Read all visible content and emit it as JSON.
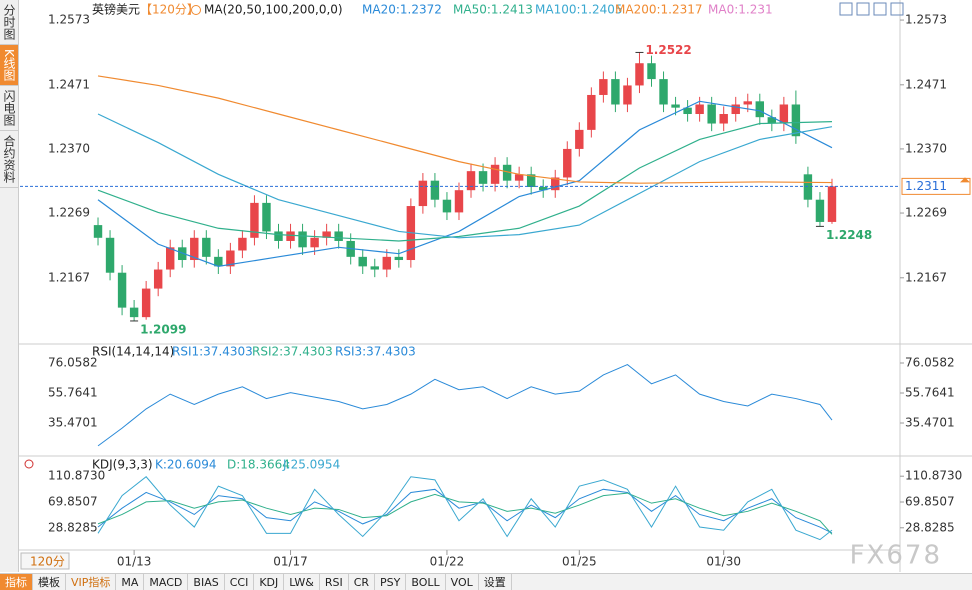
{
  "side_tabs": [
    "分时图",
    "K线图",
    "闪电图",
    "合约资料"
  ],
  "toolbar": {
    "period": "120分",
    "tabs": [
      "指标",
      "模板",
      "VIP指标",
      "MA",
      "MACD",
      "BIAS",
      "CCI",
      "KDJ",
      "LW&",
      "RSI",
      "CR",
      "PSY",
      "BOLL",
      "VOL",
      "设置"
    ]
  },
  "watermark": "FX678",
  "chart_data": {
    "type": "candlestick",
    "symbol": "英镑美元",
    "period": "【120分】",
    "indicator": "MA(20,50,100,200,0,0)",
    "up_color": "#e8464a",
    "down_color": "#2ea86c",
    "open": [
      1.225,
      1.223,
      1.2175,
      1.212,
      1.2105,
      1.215,
      1.218,
      1.2215,
      1.2195,
      1.223,
      1.22,
      1.2185,
      1.221,
      1.223,
      1.2285,
      1.224,
      1.2225,
      1.224,
      1.2215,
      1.223,
      1.224,
      1.2225,
      1.22,
      1.2185,
      1.218,
      1.22,
      1.2195,
      1.228,
      1.232,
      1.229,
      1.227,
      1.2305,
      1.2335,
      1.2315,
      1.2345,
      1.232,
      1.233,
      1.231,
      1.2305,
      1.2325,
      1.237,
      1.24,
      1.2455,
      1.248,
      1.244,
      1.247,
      1.2505,
      1.248,
      1.244,
      1.2435,
      1.2425,
      1.244,
      1.241,
      1.2425,
      1.244,
      1.2445,
      1.242,
      1.241,
      1.244,
      1.233,
      1.229,
      1.2255
    ],
    "high": [
      1.2262,
      1.2242,
      1.2187,
      1.2132,
      1.2162,
      1.2192,
      1.2227,
      1.2227,
      1.2242,
      1.2242,
      1.2212,
      1.2222,
      1.2242,
      1.2297,
      1.2297,
      1.2252,
      1.2252,
      1.2252,
      1.2242,
      1.2252,
      1.2252,
      1.2237,
      1.2212,
      1.2197,
      1.2212,
      1.2212,
      1.2292,
      1.2332,
      1.2332,
      1.2302,
      1.2317,
      1.2347,
      1.2347,
      1.2357,
      1.2357,
      1.2342,
      1.2342,
      1.2322,
      1.2337,
      1.2382,
      1.2412,
      1.2467,
      1.2492,
      1.2492,
      1.2482,
      1.2522,
      1.2517,
      1.2492,
      1.2452,
      1.2447,
      1.2452,
      1.2452,
      1.2437,
      1.2452,
      1.2457,
      1.2457,
      1.2432,
      1.2452,
      1.2462,
      1.2342,
      1.2302,
      1.2323
    ],
    "low": [
      1.2218,
      1.2163,
      1.2108,
      1.2099,
      1.2101,
      1.2138,
      1.2168,
      1.2183,
      1.2183,
      1.2188,
      1.2173,
      1.2173,
      1.2198,
      1.2218,
      1.2228,
      1.2213,
      1.2213,
      1.2203,
      1.2203,
      1.2218,
      1.2213,
      1.2188,
      1.2173,
      1.2168,
      1.2168,
      1.2183,
      1.2183,
      1.2268,
      1.2278,
      1.2258,
      1.2258,
      1.2293,
      1.2303,
      1.2303,
      1.2308,
      1.2308,
      1.2298,
      1.2293,
      1.2293,
      1.2313,
      1.2358,
      1.2388,
      1.2443,
      1.2428,
      1.2428,
      1.2458,
      1.2468,
      1.2428,
      1.2423,
      1.2413,
      1.2413,
      1.2398,
      1.2398,
      1.2413,
      1.2428,
      1.2408,
      1.2398,
      1.2398,
      1.2378,
      1.2278,
      1.2248,
      1.2252
    ],
    "close": [
      1.223,
      1.2175,
      1.212,
      1.2105,
      1.215,
      1.218,
      1.2215,
      1.2195,
      1.223,
      1.22,
      1.2185,
      1.221,
      1.223,
      1.2285,
      1.224,
      1.2225,
      1.224,
      1.2215,
      1.223,
      1.224,
      1.2225,
      1.22,
      1.2185,
      1.218,
      1.22,
      1.2195,
      1.228,
      1.232,
      1.229,
      1.227,
      1.2305,
      1.2335,
      1.2315,
      1.2345,
      1.232,
      1.233,
      1.231,
      1.2305,
      1.2325,
      1.237,
      1.24,
      1.2455,
      1.248,
      1.244,
      1.247,
      1.2505,
      1.248,
      1.244,
      1.2435,
      1.2425,
      1.244,
      1.241,
      1.2425,
      1.244,
      1.2445,
      1.242,
      1.241,
      1.244,
      1.239,
      1.229,
      1.2255,
      1.2311
    ],
    "ylim": [
      1.2069,
      1.2592
    ],
    "yticks": [
      1.2573,
      1.2471,
      {
        "value": 1.237,
        "label": "1.2370"
      },
      1.2269,
      1.2167
    ],
    "date_ticks": [
      {
        "value": 3,
        "label": "01/13"
      },
      {
        "value": 16,
        "label": "01/17"
      },
      {
        "value": 29,
        "label": "01/22"
      },
      {
        "value": 40,
        "label": "01/25"
      },
      {
        "value": 52,
        "label": "01/30"
      }
    ],
    "current": {
      "value": 1.2311,
      "color": "#2a6fd8"
    },
    "annotations": [
      {
        "value": 1.2522,
        "index": 45,
        "color": "#e8464a"
      },
      {
        "value": 1.2099,
        "index": 3,
        "color": "#2ea86c"
      },
      {
        "value": 1.2248,
        "index": 60,
        "color": "#2ea86c"
      }
    ],
    "ma_x": [
      0,
      5,
      10,
      15,
      20,
      25,
      30,
      35,
      40,
      45,
      50,
      55,
      61
    ],
    "ma": [
      {
        "name": "MA20:1.2372",
        "color": "#2a8ad8",
        "values": [
          1.229,
          1.222,
          1.2185,
          1.22,
          1.2215,
          1.2205,
          1.224,
          1.2295,
          1.232,
          1.24,
          1.2445,
          1.243,
          1.2372
        ]
      },
      {
        "name": "MA50:1.2413",
        "color": "#30b08c",
        "values": [
          1.2305,
          1.227,
          1.2245,
          1.2235,
          1.223,
          1.2225,
          1.2232,
          1.2245,
          1.228,
          1.234,
          1.2385,
          1.241,
          1.2413
        ]
      },
      {
        "name": "MA100:1.2405",
        "color": "#3aa8d0",
        "values": [
          1.2425,
          1.238,
          1.233,
          1.229,
          1.2265,
          1.224,
          1.223,
          1.2235,
          1.225,
          1.23,
          1.235,
          1.2385,
          1.2405
        ]
      },
      {
        "name": "MA200:1.2317",
        "color": "#f08a30",
        "values": [
          1.2485,
          1.247,
          1.245,
          1.2425,
          1.24,
          1.2375,
          1.235,
          1.233,
          1.2318,
          1.2316,
          1.2317,
          1.2318,
          1.2317
        ]
      },
      {
        "name": "MA0:1.231",
        "color": "#e080c8",
        "values": []
      }
    ],
    "rsi": {
      "title": "RSI(14,14,14)",
      "legend": [
        {
          "name": "RSI1:37.4303",
          "color": "#2a8ad8"
        },
        {
          "name": "RSI2:37.4303",
          "color": "#30b08c"
        },
        {
          "name": "RSI3:37.4303",
          "color": "#2a8ad8"
        }
      ],
      "x": [
        0,
        2,
        4,
        6,
        8,
        10,
        12,
        14,
        16,
        18,
        20,
        22,
        24,
        26,
        28,
        30,
        32,
        34,
        36,
        38,
        40,
        42,
        44,
        46,
        48,
        50,
        52,
        54,
        56,
        58,
        60,
        61
      ],
      "values": [
        20,
        32,
        45,
        55,
        48,
        55,
        60,
        52,
        56,
        53,
        50,
        45,
        48,
        55,
        65,
        58,
        60,
        52,
        60,
        55,
        57,
        68,
        75,
        62,
        68,
        55,
        50,
        47,
        55,
        52,
        48,
        37.43
      ],
      "ylim": [
        13.82,
        88.24
      ],
      "yticks": [
        76.0582,
        55.7641,
        35.4701
      ],
      "color": "#2a8ad8"
    },
    "kdj": {
      "title": "KDJ(9,3,3)",
      "x": [
        0,
        2,
        4,
        6,
        8,
        10,
        12,
        14,
        16,
        18,
        20,
        22,
        24,
        26,
        28,
        30,
        32,
        34,
        36,
        38,
        40,
        42,
        44,
        46,
        48,
        50,
        52,
        54,
        56,
        58,
        60,
        61
      ],
      "ylim": [
        -3.34,
        139.83
      ],
      "yticks": [
        {
          "value": 110.873,
          "label": "110.8730"
        },
        69.8507,
        28.8285
      ],
      "series": [
        {
          "name": "K:20.6094",
          "color": "#2a8ad8",
          "values": [
            30,
            60,
            85,
            70,
            50,
            80,
            75,
            45,
            40,
            70,
            55,
            35,
            50,
            85,
            90,
            60,
            70,
            40,
            65,
            45,
            75,
            90,
            85,
            55,
            80,
            50,
            40,
            60,
            75,
            45,
            30,
            20.61
          ]
        },
        {
          "name": "D:18.3664",
          "color": "#30b08c",
          "values": [
            35,
            50,
            70,
            72,
            60,
            70,
            73,
            60,
            50,
            60,
            58,
            45,
            48,
            70,
            82,
            70,
            68,
            55,
            60,
            52,
            65,
            80,
            84,
            68,
            75,
            60,
            48,
            55,
            68,
            55,
            40,
            18.37
          ]
        },
        {
          "name": "J:25.0954",
          "color": "#3aa8d0",
          "values": [
            20,
            80,
            110,
            65,
            30,
            95,
            80,
            20,
            20,
            90,
            50,
            15,
            55,
            110,
            105,
            40,
            75,
            15,
            75,
            30,
            95,
            105,
            90,
            30,
            95,
            30,
            25,
            70,
            90,
            25,
            10,
            25.1
          ]
        }
      ]
    }
  }
}
